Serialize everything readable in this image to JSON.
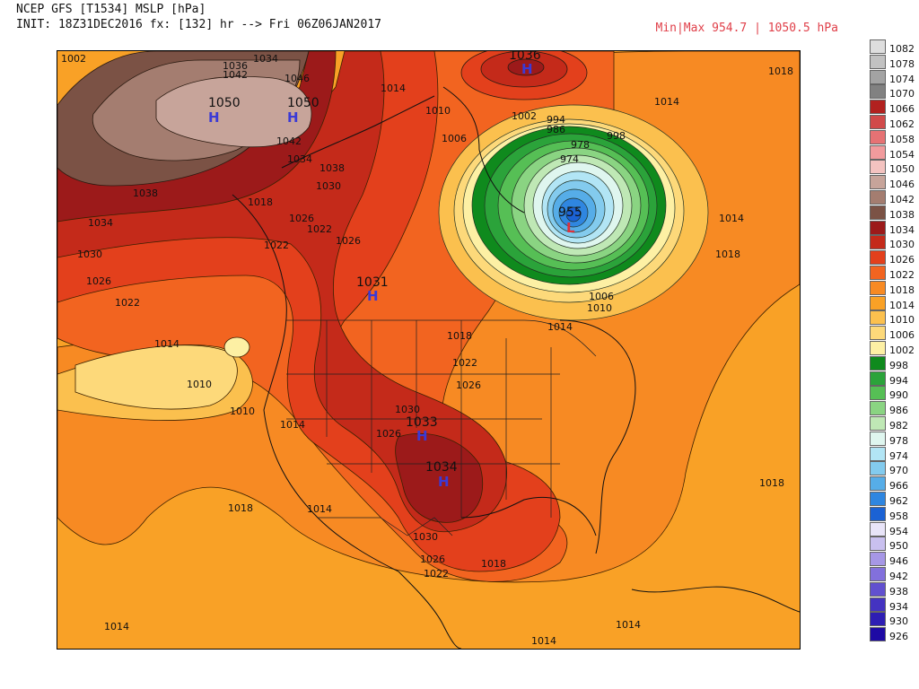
{
  "header": {
    "line1": "NCEP GFS [T1534] MSLP [hPa]",
    "line2": "INIT: 18Z31DEC2016 fx: [132] hr --> Fri 06Z06JAN2017",
    "minmax": "Min|Max 954.7 | 1050.5 hPa"
  },
  "legend": [
    {
      "value": "1082",
      "color": "#dedede"
    },
    {
      "value": "1078",
      "color": "#c2c2c2"
    },
    {
      "value": "1074",
      "color": "#a3a3a3"
    },
    {
      "value": "1070",
      "color": "#818181"
    },
    {
      "value": "1066",
      "color": "#b2211f"
    },
    {
      "value": "1062",
      "color": "#d14a4a"
    },
    {
      "value": "1058",
      "color": "#e67274"
    },
    {
      "value": "1054",
      "color": "#f19b9d"
    },
    {
      "value": "1050",
      "color": "#f4c3c0"
    },
    {
      "value": "1046",
      "color": "#c7a49a"
    },
    {
      "value": "1042",
      "color": "#a47d70"
    },
    {
      "value": "1038",
      "color": "#7b5245"
    },
    {
      "value": "1034",
      "color": "#9c1a1a"
    },
    {
      "value": "1030",
      "color": "#c42a1a"
    },
    {
      "value": "1026",
      "color": "#e3401c"
    },
    {
      "value": "1022",
      "color": "#f26420"
    },
    {
      "value": "1018",
      "color": "#f78a23"
    },
    {
      "value": "1014",
      "color": "#f9a126"
    },
    {
      "value": "1010",
      "color": "#fbc04e"
    },
    {
      "value": "1006",
      "color": "#fdd97a"
    },
    {
      "value": "1002",
      "color": "#fdf0a4"
    },
    {
      "value": "998",
      "color": "#0f8a1d"
    },
    {
      "value": "994",
      "color": "#2ba33a"
    },
    {
      "value": "990",
      "color": "#56bf55"
    },
    {
      "value": "986",
      "color": "#8ad482"
    },
    {
      "value": "982",
      "color": "#bfe8b5"
    },
    {
      "value": "978",
      "color": "#dff6ef"
    },
    {
      "value": "974",
      "color": "#b2e5f5"
    },
    {
      "value": "970",
      "color": "#83cbee"
    },
    {
      "value": "966",
      "color": "#56ade8"
    },
    {
      "value": "962",
      "color": "#2f86e0"
    },
    {
      "value": "958",
      "color": "#1b62d4"
    },
    {
      "value": "954",
      "color": "#e8e4f8"
    },
    {
      "value": "950",
      "color": "#c9c0ef"
    },
    {
      "value": "946",
      "color": "#a697e6"
    },
    {
      "value": "942",
      "color": "#8270dc"
    },
    {
      "value": "938",
      "color": "#6150cf"
    },
    {
      "value": "934",
      "color": "#4433c1"
    },
    {
      "value": "930",
      "color": "#2e1eb4"
    },
    {
      "value": "926",
      "color": "#1e0aa4"
    }
  ],
  "contour_labels": {
    "l1002": "1002",
    "l1036_top": "1036",
    "l1018_ne": "1018",
    "l1014_top": "1014",
    "l1014_ne": "1014",
    "l1046": "1046",
    "l1042a": "1042",
    "l1036b": "1036",
    "l1034a": "1034",
    "l1038a": "1038",
    "l1042b": "1042",
    "l1034b": "1034",
    "l1038b": "1038",
    "l1030a": "1030",
    "l1018a": "1018",
    "l1034c": "1034",
    "l1030b": "1030",
    "l1026a": "1026",
    "l1022a": "1022",
    "l1026b": "1026",
    "l1022b": "1022",
    "l1014a": "1014",
    "l1010a": "1010",
    "l1010b": "1010",
    "l1014b": "1014",
    "l1018b": "1018",
    "l1014c": "1014",
    "l1014d": "1014",
    "l1014e": "1014",
    "l1026c": "1026",
    "l1022c": "1022",
    "l1026d": "1026",
    "l1030c": "1030",
    "l1030d": "1030",
    "l1026e": "1026",
    "l1022d": "1022",
    "l1018c": "1018",
    "l1018d": "1018",
    "l1018e": "1018",
    "l1014f": "1014",
    "l1014g": "1014",
    "l1014h": "1014",
    "l1010c": "1010",
    "l1006a": "1006",
    "l1010d": "1010",
    "l1006b": "1006",
    "l1002b": "1002",
    "l994": "994",
    "l986": "986",
    "l978": "978",
    "l974": "974",
    "l998": "998",
    "l1014i": "1014",
    "l1018f": "1018",
    "l1014j": "1014"
  },
  "pressure_centers": [
    {
      "id": "high-bering",
      "value": "1050",
      "symbol": "H",
      "color": "#3a3ad6"
    },
    {
      "id": "high-yukon",
      "value": "1050",
      "symbol": "H",
      "color": "#3a3ad6"
    },
    {
      "id": "high-greenland",
      "value": "1036",
      "symbol": "H",
      "color": "#3a3ad6"
    },
    {
      "id": "low-hudson",
      "value": "955",
      "symbol": "L",
      "color": "#e0303a"
    },
    {
      "id": "high-rockies",
      "value": "1031",
      "symbol": "H",
      "color": "#3a3ad6"
    },
    {
      "id": "high-plains",
      "value": "1033",
      "symbol": "H",
      "color": "#3a3ad6"
    },
    {
      "id": "high-oklahoma",
      "value": "1034",
      "symbol": "H",
      "color": "#3a3ad6"
    }
  ]
}
